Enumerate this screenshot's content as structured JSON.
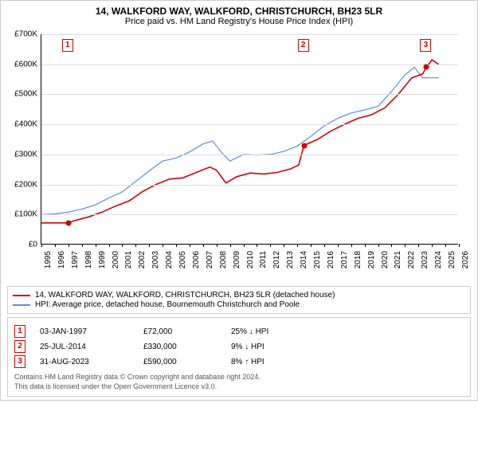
{
  "title": "14, WALKFORD WAY, WALKFORD, CHRISTCHURCH, BH23 5LR",
  "subtitle": "Price paid vs. HM Land Registry's House Price Index (HPI)",
  "chart": {
    "type": "line",
    "background_color": "#ffffff",
    "grid_color": "#dddddd",
    "axis_color": "#000000",
    "y": {
      "min": 0,
      "max": 700000,
      "step": 100000,
      "prefix": "£",
      "suffix": "K",
      "divisor": 1000,
      "fontsize": 10,
      "color": "#000000"
    },
    "x": {
      "min": 1995,
      "max": 2026,
      "step": 1,
      "fontsize": 10,
      "color": "#000000",
      "rotation": -90
    },
    "series_red": {
      "label": "14, WALKFORD WAY, WALKFORD, CHRISTCHURCH, BH23 5LR (detached house)",
      "color": "#d40000",
      "width": 1.6,
      "points": [
        [
          1995.0,
          72000
        ],
        [
          1997.0,
          72000
        ],
        [
          1997.5,
          80000
        ],
        [
          1998.5,
          92000
        ],
        [
          1999.5,
          108000
        ],
        [
          2000.5,
          128000
        ],
        [
          2001.5,
          145000
        ],
        [
          2002.5,
          176000
        ],
        [
          2003.5,
          200000
        ],
        [
          2004.5,
          218000
        ],
        [
          2005.5,
          222000
        ],
        [
          2006.5,
          240000
        ],
        [
          2007.5,
          258000
        ],
        [
          2008.0,
          248000
        ],
        [
          2008.7,
          205000
        ],
        [
          2009.5,
          226000
        ],
        [
          2010.5,
          238000
        ],
        [
          2011.5,
          235000
        ],
        [
          2012.5,
          240000
        ],
        [
          2013.5,
          252000
        ],
        [
          2014.1,
          265000
        ],
        [
          2014.5,
          330000
        ],
        [
          2015.5,
          350000
        ],
        [
          2016.5,
          378000
        ],
        [
          2017.5,
          400000
        ],
        [
          2018.5,
          420000
        ],
        [
          2019.5,
          432000
        ],
        [
          2020.5,
          455000
        ],
        [
          2021.5,
          500000
        ],
        [
          2022.5,
          555000
        ],
        [
          2023.3,
          568000
        ],
        [
          2023.6,
          590000
        ],
        [
          2024.0,
          615000
        ],
        [
          2024.5,
          600000
        ]
      ]
    },
    "series_blue": {
      "label": "HPI: Average price, detached house, Bournemouth Christchurch and Poole",
      "color": "#5b8fcf",
      "width": 1.2,
      "points": [
        [
          1995.0,
          100000
        ],
        [
          1996.0,
          102000
        ],
        [
          1997.0,
          108000
        ],
        [
          1998.0,
          118000
        ],
        [
          1999.0,
          132000
        ],
        [
          2000.0,
          155000
        ],
        [
          2001.0,
          175000
        ],
        [
          2002.0,
          210000
        ],
        [
          2003.0,
          245000
        ],
        [
          2004.0,
          278000
        ],
        [
          2005.0,
          288000
        ],
        [
          2006.0,
          308000
        ],
        [
          2007.0,
          335000
        ],
        [
          2007.7,
          345000
        ],
        [
          2008.5,
          300000
        ],
        [
          2009.0,
          278000
        ],
        [
          2010.0,
          300000
        ],
        [
          2011.0,
          298000
        ],
        [
          2012.0,
          300000
        ],
        [
          2013.0,
          310000
        ],
        [
          2014.0,
          328000
        ],
        [
          2015.0,
          360000
        ],
        [
          2016.0,
          395000
        ],
        [
          2017.0,
          420000
        ],
        [
          2018.0,
          438000
        ],
        [
          2019.0,
          448000
        ],
        [
          2020.0,
          460000
        ],
        [
          2021.0,
          510000
        ],
        [
          2022.0,
          565000
        ],
        [
          2022.7,
          590000
        ],
        [
          2023.3,
          555000
        ],
        [
          2024.0,
          555000
        ],
        [
          2024.5,
          555000
        ]
      ]
    },
    "markers": [
      {
        "n": "1",
        "year": 1997.0,
        "price": 72000
      },
      {
        "n": "2",
        "year": 2014.5,
        "price": 330000
      },
      {
        "n": "3",
        "year": 2023.6,
        "price": 590000
      }
    ]
  },
  "legend": {
    "border_color": "#cccccc",
    "fontsize": 10,
    "items": [
      {
        "color": "#d40000",
        "label": "14, WALKFORD WAY, WALKFORD, CHRISTCHURCH, BH23 5LR (detached house)"
      },
      {
        "color": "#5b8fcf",
        "label": "HPI: Average price, detached house, Bournemouth Christchurch and Poole"
      }
    ]
  },
  "transactions": {
    "border_color": "#cccccc",
    "rows": [
      {
        "n": "1",
        "date": "03-JAN-1997",
        "price": "£72,000",
        "delta": "25% ↓ HPI"
      },
      {
        "n": "2",
        "date": "25-JUL-2014",
        "price": "£330,000",
        "delta": "9% ↓ HPI"
      },
      {
        "n": "3",
        "date": "31-AUG-2023",
        "price": "£590,000",
        "delta": "8% ↑ HPI"
      }
    ],
    "footnote1": "Contains HM Land Registry data © Crown copyright and database right 2024.",
    "footnote2": "This data is licensed under the Open Government Licence v3.0."
  }
}
